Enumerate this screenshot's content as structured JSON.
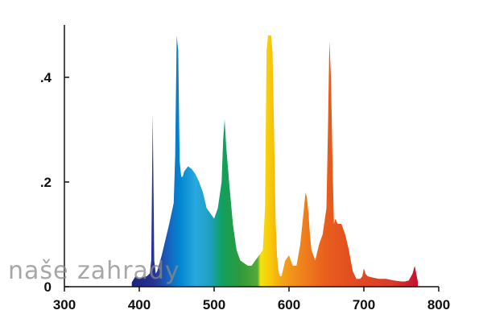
{
  "watermark": "naše zahrady",
  "chart_data": {
    "type": "area",
    "title": "",
    "xlabel": "",
    "ylabel": "",
    "xlim": [
      300,
      800
    ],
    "ylim": [
      0,
      0.5
    ],
    "x_ticks": [
      {
        "value": 300,
        "label": "300"
      },
      {
        "value": 400,
        "label": "400"
      },
      {
        "value": 500,
        "label": "500"
      },
      {
        "value": 600,
        "label": "600"
      },
      {
        "value": 700,
        "label": "700"
      },
      {
        "value": 800,
        "label": "800"
      }
    ],
    "y_ticks": [
      {
        "value": 0,
        "label": "0"
      },
      {
        "value": 0.2,
        "label": ".2"
      },
      {
        "value": 0.4,
        "label": ".4"
      }
    ],
    "grid": false,
    "fill": "visible-spectrum gradient (violet to red)",
    "series": [
      {
        "x": [
          390,
          395,
          400,
          405,
          410,
          414,
          416,
          418,
          420,
          422,
          424,
          430,
          440,
          446,
          448,
          450,
          452,
          454,
          456,
          458,
          460,
          465,
          470,
          475,
          480,
          485,
          490,
          495,
          500,
          505,
          510,
          512,
          514,
          516,
          520,
          525,
          530,
          535,
          540,
          545,
          550,
          555,
          560,
          565,
          568,
          570,
          572,
          574,
          576,
          578,
          580,
          582,
          584,
          586,
          588,
          590,
          595,
          600,
          605,
          610,
          615,
          620,
          622,
          624,
          626,
          628,
          630,
          635,
          640,
          645,
          650,
          652,
          654,
          656,
          658,
          660,
          662,
          665,
          670,
          675,
          680,
          685,
          690,
          695,
          698,
          700,
          702,
          705,
          710,
          720,
          730,
          740,
          750,
          755,
          760,
          765,
          768,
          772
        ],
        "y": [
          0.008,
          0.02,
          0.015,
          0.018,
          0.02,
          0.025,
          0.05,
          0.33,
          0.05,
          0.025,
          0.03,
          0.06,
          0.12,
          0.16,
          0.25,
          0.48,
          0.45,
          0.24,
          0.21,
          0.21,
          0.22,
          0.23,
          0.225,
          0.215,
          0.2,
          0.18,
          0.15,
          0.14,
          0.13,
          0.15,
          0.2,
          0.28,
          0.32,
          0.27,
          0.2,
          0.12,
          0.07,
          0.05,
          0.045,
          0.04,
          0.04,
          0.05,
          0.06,
          0.07,
          0.15,
          0.45,
          0.48,
          0.48,
          0.48,
          0.45,
          0.3,
          0.13,
          0.06,
          0.03,
          0.02,
          0.02,
          0.05,
          0.06,
          0.04,
          0.04,
          0.08,
          0.15,
          0.18,
          0.17,
          0.14,
          0.1,
          0.07,
          0.05,
          0.08,
          0.1,
          0.15,
          0.3,
          0.47,
          0.4,
          0.25,
          0.12,
          0.13,
          0.12,
          0.12,
          0.1,
          0.07,
          0.03,
          0.015,
          0.015,
          0.02,
          0.035,
          0.025,
          0.02,
          0.018,
          0.015,
          0.015,
          0.012,
          0.01,
          0.01,
          0.012,
          0.025,
          0.04,
          0.01
        ]
      }
    ]
  }
}
